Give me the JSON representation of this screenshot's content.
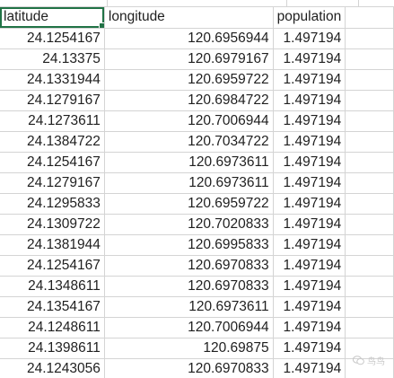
{
  "columns": {
    "a": "latitude",
    "b": "longitude",
    "c": "population"
  },
  "header_glyphs": {
    "a": "ʼ",
    "b": "ʼ",
    "c": "ʼ"
  },
  "rows": [
    {
      "lat": "24.1254167",
      "lon": "120.6956944",
      "pop": "1.497194"
    },
    {
      "lat": "24.13375",
      "lon": "120.6979167",
      "pop": "1.497194"
    },
    {
      "lat": "24.1331944",
      "lon": "120.6959722",
      "pop": "1.497194"
    },
    {
      "lat": "24.1279167",
      "lon": "120.6984722",
      "pop": "1.497194"
    },
    {
      "lat": "24.1273611",
      "lon": "120.7006944",
      "pop": "1.497194"
    },
    {
      "lat": "24.1384722",
      "lon": "120.7034722",
      "pop": "1.497194"
    },
    {
      "lat": "24.1254167",
      "lon": "120.6973611",
      "pop": "1.497194"
    },
    {
      "lat": "24.1279167",
      "lon": "120.6973611",
      "pop": "1.497194"
    },
    {
      "lat": "24.1295833",
      "lon": "120.6959722",
      "pop": "1.497194"
    },
    {
      "lat": "24.1309722",
      "lon": "120.7020833",
      "pop": "1.497194"
    },
    {
      "lat": "24.1381944",
      "lon": "120.6995833",
      "pop": "1.497194"
    },
    {
      "lat": "24.1254167",
      "lon": "120.6970833",
      "pop": "1.497194"
    },
    {
      "lat": "24.1348611",
      "lon": "120.6970833",
      "pop": "1.497194"
    },
    {
      "lat": "24.1354167",
      "lon": "120.6973611",
      "pop": "1.497194"
    },
    {
      "lat": "24.1248611",
      "lon": "120.7006944",
      "pop": "1.497194"
    },
    {
      "lat": "24.1398611",
      "lon": "120.69875",
      "pop": "1.497194"
    },
    {
      "lat": "24.1243056",
      "lon": "120.6970833",
      "pop": "1.497194"
    }
  ],
  "watermark": {
    "text": "鸟鸟",
    "icon": "wechat-bubble-icon"
  },
  "colors": {
    "gridline": "#d4d4d4",
    "selection": "#217346",
    "text": "#1f1f1f"
  }
}
